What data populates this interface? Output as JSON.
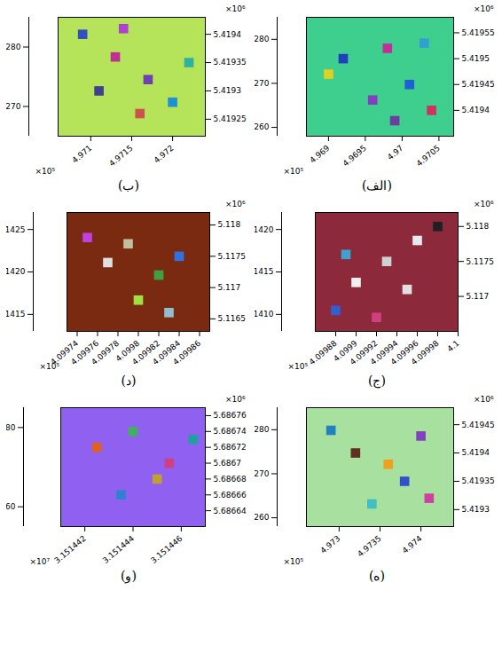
{
  "chart_data": [
    {
      "type": "scatter3d",
      "title": "(الف)",
      "color": "#3ecf8e",
      "xlim": [
        4.9687,
        4.9707
      ],
      "xticks": [
        4.969,
        4.9695,
        4.97,
        4.9705
      ],
      "xlabel": "×10⁵",
      "ylim": [
        5.41935,
        5.41958
      ],
      "yticks": [
        5.4194,
        5.41945,
        5.4195,
        5.41955
      ],
      "ylabel": "×10⁶",
      "zlim": [
        258,
        285
      ],
      "zticks": [
        260,
        270,
        280
      ],
      "points": [
        {
          "x": 4.9692,
          "y": 5.4195,
          "color": "#1f3fbf"
        },
        {
          "x": 4.9698,
          "y": 5.41952,
          "color": "#c0309a"
        },
        {
          "x": 4.9701,
          "y": 5.41945,
          "color": "#2060d0"
        },
        {
          "x": 4.9696,
          "y": 5.41942,
          "color": "#8040c0"
        },
        {
          "x": 4.9704,
          "y": 5.4194,
          "color": "#d03060"
        },
        {
          "x": 4.969,
          "y": 5.41947,
          "color": "#e0d020"
        },
        {
          "x": 4.9699,
          "y": 5.41938,
          "color": "#6a3fa0"
        },
        {
          "x": 4.9703,
          "y": 5.41953,
          "color": "#30a0d0"
        }
      ]
    },
    {
      "type": "scatter3d",
      "title": "(ب)",
      "color": "#b5e35a",
      "xlim": [
        4.9706,
        4.9724
      ],
      "xticks": [
        4.971,
        4.9715,
        4.972
      ],
      "xlabel": "×10⁵",
      "ylim": [
        5.41922,
        5.41943
      ],
      "yticks": [
        5.41925,
        5.4193,
        5.41935,
        5.4194
      ],
      "ylabel": "×10⁶",
      "zlim": [
        265,
        285
      ],
      "zticks": [
        270,
        280
      ],
      "points": [
        {
          "x": 4.9709,
          "y": 5.4194,
          "color": "#3050c0"
        },
        {
          "x": 4.9713,
          "y": 5.41936,
          "color": "#c03090"
        },
        {
          "x": 4.9717,
          "y": 5.41932,
          "color": "#7040b0"
        },
        {
          "x": 4.972,
          "y": 5.41928,
          "color": "#2090d0"
        },
        {
          "x": 4.9711,
          "y": 5.4193,
          "color": "#404090"
        },
        {
          "x": 4.9716,
          "y": 5.41926,
          "color": "#d05050"
        },
        {
          "x": 4.9722,
          "y": 5.41935,
          "color": "#30b0a0"
        },
        {
          "x": 4.9714,
          "y": 5.41941,
          "color": "#b040d0"
        }
      ]
    },
    {
      "type": "scatter3d",
      "title": "(ج)",
      "color": "#8c2a3c",
      "xlim": [
        4.09986,
        4.1
      ],
      "xticks": [
        4.09988,
        4.0999,
        4.09992,
        4.09994,
        4.09996,
        4.09998,
        4.1
      ],
      "xlabel": "×10⁵",
      "ylim": [
        5.1165,
        5.1182
      ],
      "yticks": [
        5.117,
        5.1175,
        5.118
      ],
      "ylabel": "×10⁶",
      "zlim": [
        1408,
        1422
      ],
      "zticks": [
        1410,
        1415,
        1420
      ],
      "points": [
        {
          "x": 4.09988,
          "y": 5.1168,
          "color": "#3060d0"
        },
        {
          "x": 4.0999,
          "y": 5.1172,
          "color": "#f0f0f0"
        },
        {
          "x": 4.09993,
          "y": 5.1175,
          "color": "#d0d0d0"
        },
        {
          "x": 4.09996,
          "y": 5.1178,
          "color": "#e8e8f0"
        },
        {
          "x": 4.09989,
          "y": 5.1176,
          "color": "#40a0d0"
        },
        {
          "x": 4.09998,
          "y": 5.118,
          "color": "#202020"
        },
        {
          "x": 4.09992,
          "y": 5.1167,
          "color": "#d04080"
        },
        {
          "x": 4.09995,
          "y": 5.1171,
          "color": "#e0e0e0"
        }
      ]
    },
    {
      "type": "scatter3d",
      "title": "(د)",
      "color": "#7b2a12",
      "xlim": [
        4.09973,
        4.09987
      ],
      "xticks": [
        4.09974,
        4.09976,
        4.09978,
        4.0998,
        4.09982,
        4.09984,
        4.09986
      ],
      "xlabel": "×10⁵",
      "ylim": [
        5.1163,
        5.1182
      ],
      "yticks": [
        5.1165,
        5.117,
        5.1175,
        5.118
      ],
      "ylabel": "×10⁶",
      "zlim": [
        1413,
        1427
      ],
      "zticks": [
        1415,
        1420,
        1425
      ],
      "points": [
        {
          "x": 4.09975,
          "y": 5.1178,
          "color": "#c040e0"
        },
        {
          "x": 4.09977,
          "y": 5.1174,
          "color": "#e0e0e0"
        },
        {
          "x": 4.0998,
          "y": 5.1168,
          "color": "#a0e040"
        },
        {
          "x": 4.09982,
          "y": 5.1172,
          "color": "#40a040"
        },
        {
          "x": 4.09984,
          "y": 5.1175,
          "color": "#3070e0"
        },
        {
          "x": 4.09979,
          "y": 5.1177,
          "color": "#c0c0a0"
        },
        {
          "x": 4.09983,
          "y": 5.1166,
          "color": "#90c0d0"
        }
      ]
    },
    {
      "type": "scatter3d",
      "title": "(ه)",
      "color": "#a8e0a0",
      "xlim": [
        4.9726,
        4.9744
      ],
      "xticks": [
        4.973,
        4.9735,
        4.974
      ],
      "xlabel": "×10⁵",
      "ylim": [
        5.41927,
        5.41948
      ],
      "yticks": [
        5.4193,
        5.41935,
        5.4194,
        5.41945
      ],
      "ylabel": "×10⁶",
      "zlim": [
        258,
        285
      ],
      "zticks": [
        260,
        270,
        280
      ],
      "points": [
        {
          "x": 4.9736,
          "y": 5.41938,
          "color": "#f0a020"
        },
        {
          "x": 4.9738,
          "y": 5.41935,
          "color": "#3050d0"
        },
        {
          "x": 4.9732,
          "y": 5.4194,
          "color": "#603020"
        },
        {
          "x": 4.9729,
          "y": 5.41944,
          "color": "#2080c0"
        },
        {
          "x": 4.9741,
          "y": 5.41932,
          "color": "#d040a0"
        },
        {
          "x": 4.9734,
          "y": 5.41931,
          "color": "#40c0c0"
        },
        {
          "x": 4.974,
          "y": 5.41943,
          "color": "#8040c0"
        }
      ]
    },
    {
      "type": "scatter3d",
      "title": "(و)",
      "color": "#9060f0",
      "xlim": [
        3.151441,
        3.151447
      ],
      "xticks": [
        3.151442,
        3.151444,
        3.151446
      ],
      "xlabel": "×10⁷",
      "ylim": [
        5.68662,
        5.68677
      ],
      "yticks": [
        5.68664,
        5.68666,
        5.68668,
        5.6867,
        5.68672,
        5.68674,
        5.68676
      ],
      "ylabel": "×10⁶",
      "zlim": [
        55,
        85
      ],
      "zticks": [
        60,
        80
      ],
      "points": [
        {
          "x": 3.1514425,
          "y": 5.68672,
          "color": "#e06020"
        },
        {
          "x": 3.151444,
          "y": 5.68674,
          "color": "#40b060"
        },
        {
          "x": 3.1514455,
          "y": 5.6867,
          "color": "#d04080"
        },
        {
          "x": 3.1514435,
          "y": 5.68666,
          "color": "#3080d0"
        },
        {
          "x": 3.151445,
          "y": 5.68668,
          "color": "#c0a030"
        },
        {
          "x": 3.1514465,
          "y": 5.68673,
          "color": "#20a0a0"
        }
      ]
    }
  ]
}
